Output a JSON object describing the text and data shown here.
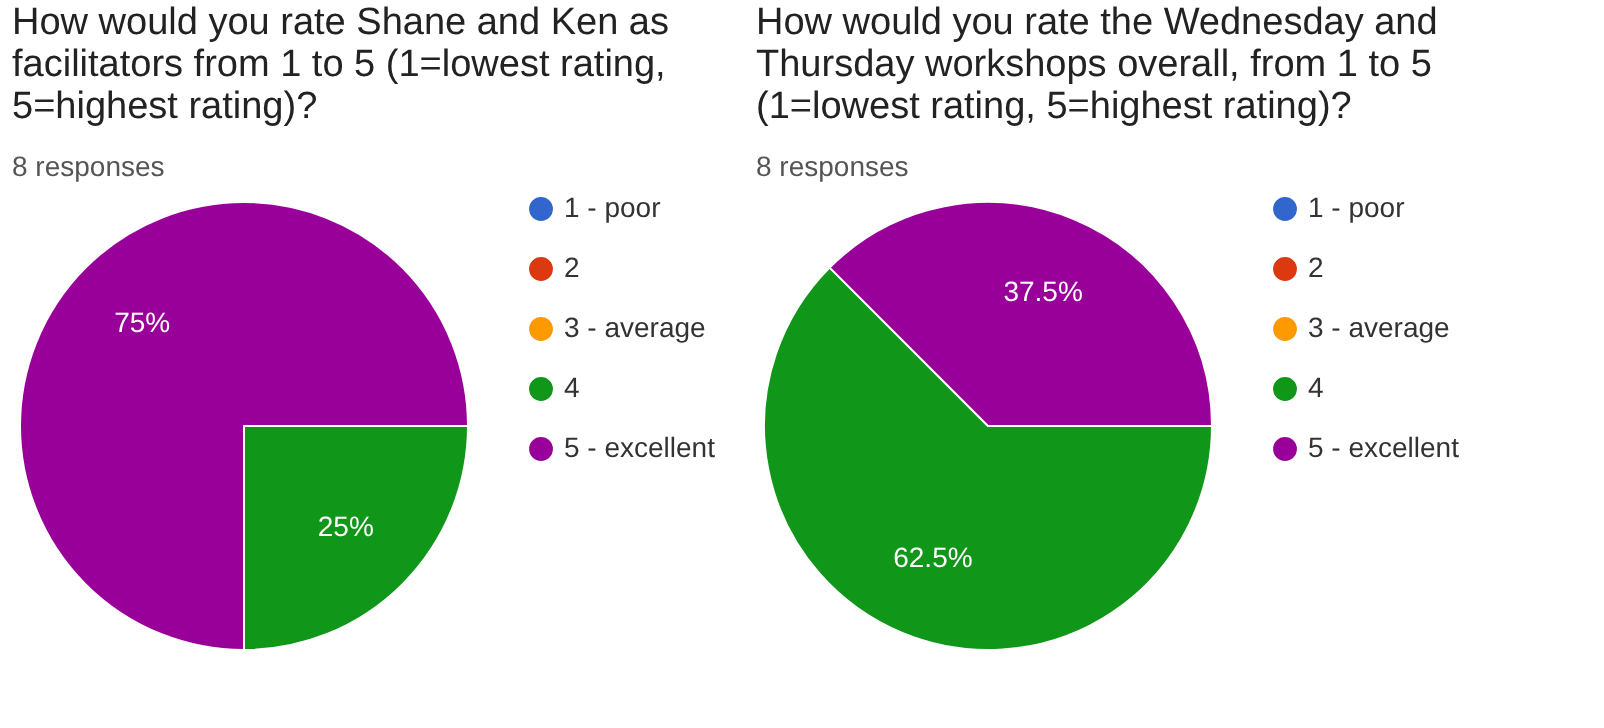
{
  "chart_data": [
    {
      "type": "pie",
      "title": [
        "How would you rate Shane and Ken as",
        "facilitators from 1 to 5 (1=lowest rating,",
        "5=highest rating)?"
      ],
      "subtitle": "8 responses",
      "categories": [
        "1 - poor",
        "2",
        "3 - average",
        "4",
        "5 - excellent"
      ],
      "values": [
        0,
        0,
        0,
        25,
        75
      ],
      "value_labels": [
        null,
        null,
        null,
        "25%",
        "75%"
      ],
      "colors": [
        "#3366cc",
        "#dc3912",
        "#ff9900",
        "#109618",
        "#990099"
      ],
      "legend": "right"
    },
    {
      "type": "pie",
      "title": [
        "How would you rate the Wednesday and",
        "Thursday workshops overall, from 1 to 5",
        "(1=lowest rating, 5=highest rating)?"
      ],
      "subtitle": "8 responses",
      "categories": [
        "1 - poor",
        "2",
        "3 - average",
        "4",
        "5 - excellent"
      ],
      "values": [
        0,
        0,
        0,
        62.5,
        37.5
      ],
      "value_labels": [
        null,
        null,
        null,
        "62.5%",
        "37.5%"
      ],
      "colors": [
        "#3366cc",
        "#dc3912",
        "#ff9900",
        "#109618",
        "#990099"
      ],
      "legend": "right"
    }
  ]
}
